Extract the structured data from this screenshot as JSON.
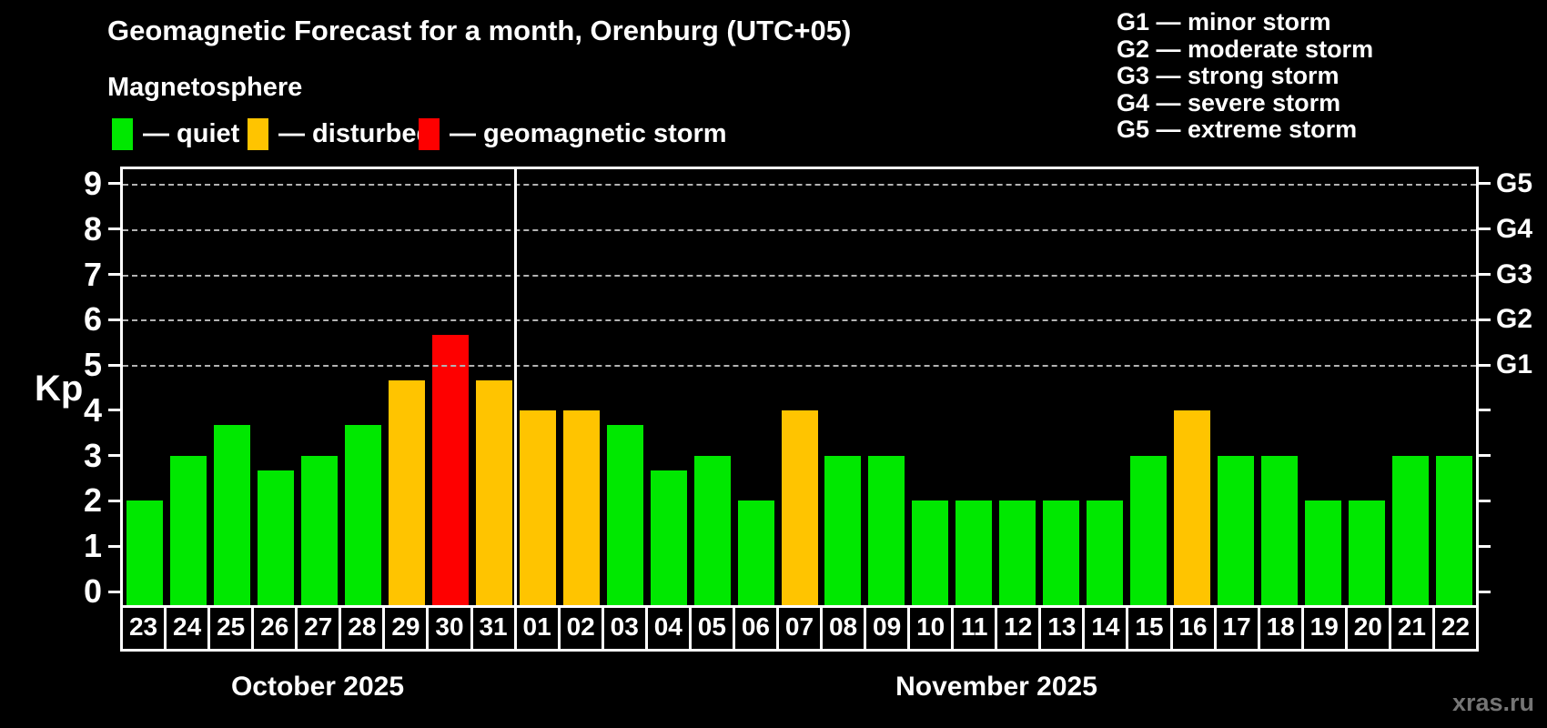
{
  "header": {
    "title": "Geomagnetic Forecast for a month, Orenburg (UTC+05)",
    "subtitle": "Magnetosphere"
  },
  "legend": {
    "items": [
      {
        "key": "quiet",
        "label": "— quiet"
      },
      {
        "key": "disturbed",
        "label": "— disturbed"
      },
      {
        "key": "storm",
        "label": "— geomagnetic storm"
      }
    ]
  },
  "storm_scale": {
    "items": [
      {
        "text": "G1 — minor storm"
      },
      {
        "text": "G2 — moderate storm"
      },
      {
        "text": "G3 — strong storm"
      },
      {
        "text": "G4 — severe storm"
      },
      {
        "text": "G5 — extreme storm"
      }
    ]
  },
  "watermark": "xras.ru",
  "chart_data": {
    "type": "bar",
    "title": "Geomagnetic Forecast for a month, Orenburg (UTC+05)",
    "ylabel": "Kp",
    "ylim": [
      0,
      9
    ],
    "yticks": [
      0,
      1,
      2,
      3,
      4,
      5,
      6,
      7,
      8,
      9
    ],
    "gridlines": {
      "values": [
        5,
        6,
        7,
        8,
        9
      ],
      "style": "dashed",
      "color": "#b3b3b3"
    },
    "right_axis_labels": [
      {
        "text": "G1",
        "value": 5
      },
      {
        "text": "G2",
        "value": 6
      },
      {
        "text": "G3",
        "value": 7
      },
      {
        "text": "G4",
        "value": 8
      },
      {
        "text": "G5",
        "value": 9
      }
    ],
    "categories": [
      "23",
      "24",
      "25",
      "26",
      "27",
      "28",
      "29",
      "30",
      "31",
      "01",
      "02",
      "03",
      "04",
      "05",
      "06",
      "07",
      "08",
      "09",
      "10",
      "11",
      "12",
      "13",
      "14",
      "15",
      "16",
      "17",
      "18",
      "19",
      "20",
      "21",
      "22"
    ],
    "values": [
      2,
      3,
      3.67,
      2.67,
      3,
      3.67,
      4.67,
      5.67,
      4.67,
      4,
      4,
      3.67,
      2.67,
      3,
      2,
      4,
      3,
      3,
      2,
      2,
      2,
      2,
      2,
      3,
      4,
      3,
      3,
      2,
      2,
      3,
      3
    ],
    "statuses": [
      "quiet",
      "quiet",
      "quiet",
      "quiet",
      "quiet",
      "quiet",
      "disturbed",
      "storm",
      "disturbed",
      "disturbed",
      "disturbed",
      "quiet",
      "quiet",
      "quiet",
      "quiet",
      "disturbed",
      "quiet",
      "quiet",
      "quiet",
      "quiet",
      "quiet",
      "quiet",
      "quiet",
      "quiet",
      "disturbed",
      "quiet",
      "quiet",
      "quiet",
      "quiet",
      "quiet",
      "quiet"
    ],
    "palette": {
      "quiet": "#00e800",
      "disturbed": "#ffc400",
      "storm": "#fe0000"
    },
    "divider_after_index": 8,
    "months": [
      {
        "label": "October 2025",
        "span": 9
      },
      {
        "label": "November 2025",
        "span": 22
      }
    ],
    "legend_position": "top-left",
    "background": "#000000"
  }
}
